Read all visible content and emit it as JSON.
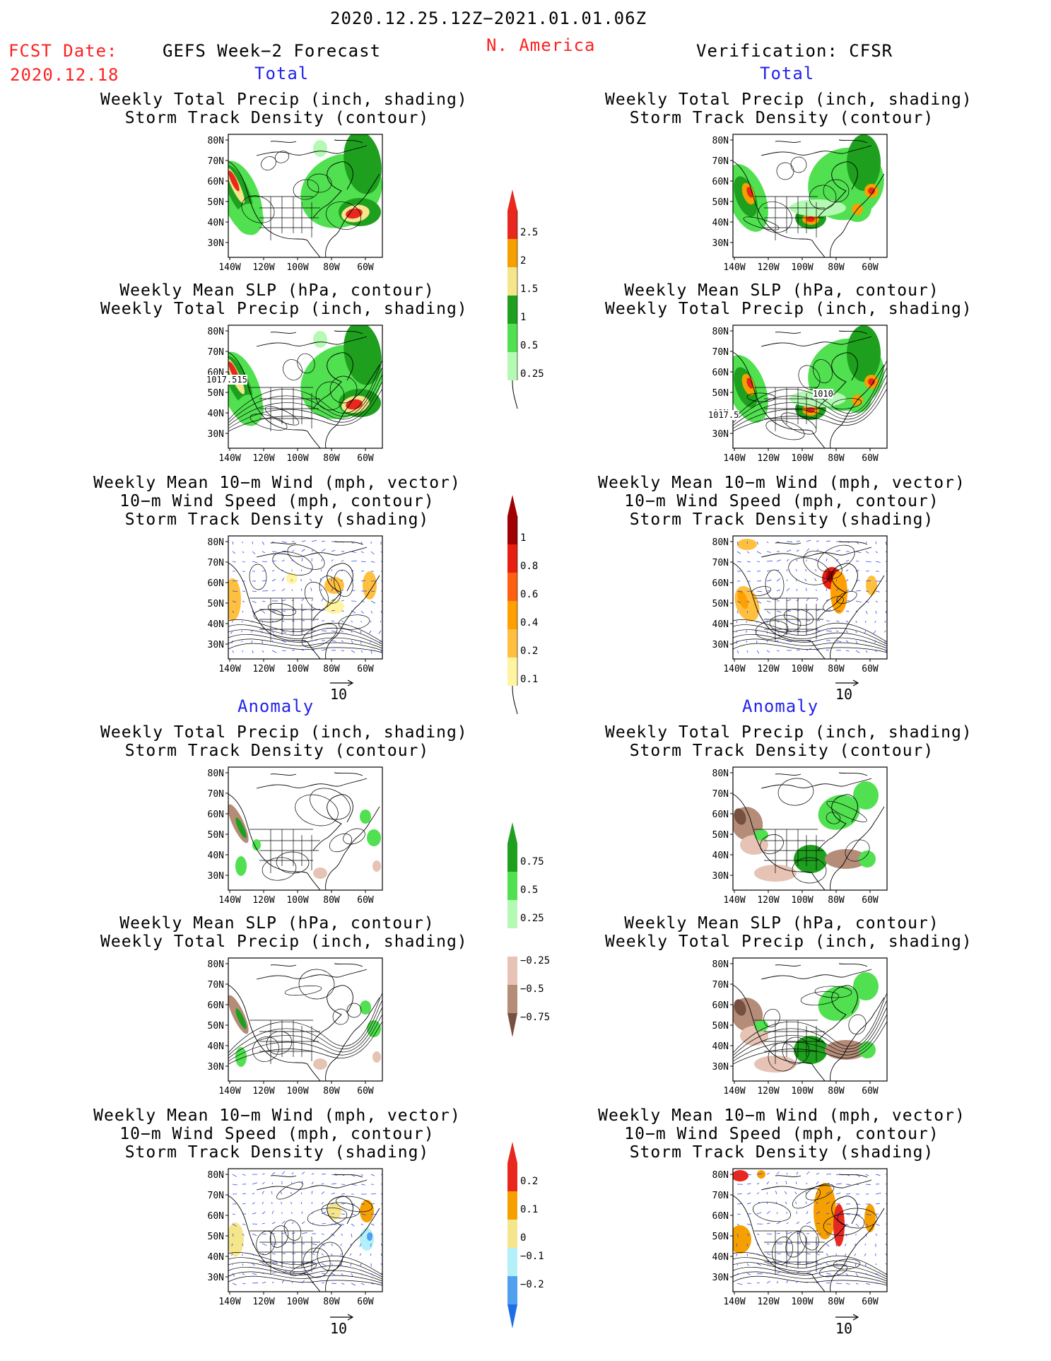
{
  "header": {
    "date_range": "2020.12.25.12Z−2021.01.01.06Z",
    "fcst_label": "FCST Date:",
    "fcst_date": "2020.12.18",
    "left_title": "GEFS Week−2 Forecast",
    "region": "N. America",
    "right_title": "Verification: CFSR"
  },
  "sections": {
    "total": "Total",
    "anomaly": "Anomaly"
  },
  "panel_titles": {
    "precip_track": [
      "Weekly Total Precip (inch, shading)",
      "Storm Track Density (contour)"
    ],
    "slp_precip": [
      "Weekly Mean SLP (hPa, contour)",
      "Weekly Total Precip (inch, shading)"
    ],
    "wind_track": [
      "Weekly Mean 10−m Wind (mph, vector)",
      "10−m Wind Speed (mph, contour)",
      "Storm Track Density (shading)"
    ]
  },
  "axes": {
    "lat_labels": [
      "80N",
      "70N",
      "60N",
      "50N",
      "40N",
      "30N"
    ],
    "lon_labels": [
      "140W",
      "120W",
      "100W",
      "80W",
      "60W"
    ]
  },
  "slp_labels": {
    "gefs_total": [
      "1017.515"
    ],
    "cfsr_total": [
      "1010",
      "1017.5"
    ]
  },
  "vector_scale": "10",
  "colorbars": {
    "precip_total": {
      "labels": [
        "2.5",
        "2",
        "1.5",
        "1",
        "0.5",
        "0.25"
      ],
      "colors": [
        "#e8281e",
        "#f5a000",
        "#f5e68c",
        "#1ea01e",
        "#50e050",
        "#b4fab4"
      ]
    },
    "track_total": {
      "labels": [
        "1",
        "0.8",
        "0.6",
        "0.4",
        "0.2",
        "0.1"
      ],
      "colors": [
        "#a00000",
        "#e81e10",
        "#ff6010",
        "#ffa000",
        "#ffc040",
        "#fff5a0"
      ]
    },
    "precip_anom": {
      "labels": [
        "0.75",
        "0.5",
        "0.25",
        "−0.25",
        "−0.5",
        "−0.75"
      ],
      "colors_top": [
        "#1ea01e",
        "#50e050",
        "#b4fab4"
      ],
      "colors_bottom": [
        "#e6c3b4",
        "#b48c78",
        "#785040"
      ]
    },
    "track_anom": {
      "labels": [
        "0.2",
        "0.1",
        "0",
        "−0.1",
        "−0.2"
      ],
      "colors_top": [
        "#e8281e",
        "#f5a000",
        "#f5e68c"
      ],
      "colors_bottom": [
        "#b4f0fa",
        "#50a0f0",
        "#1e6ee6"
      ]
    }
  }
}
